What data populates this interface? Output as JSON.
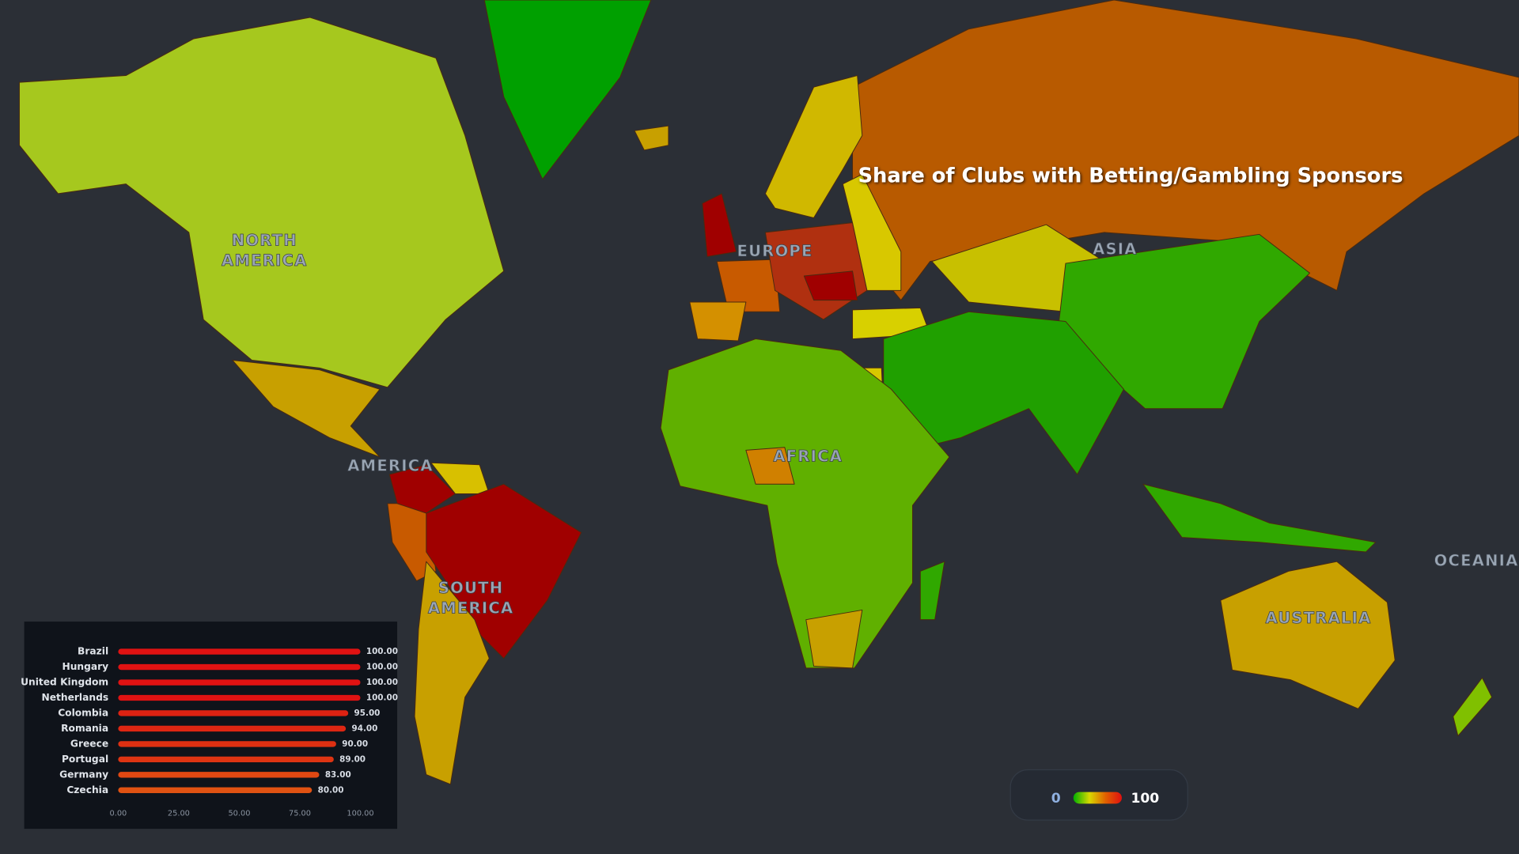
{
  "title": "Share of Clubs with Betting/Gambling Sponsors",
  "continent_labels": [
    {
      "lines": [
        "NORTH",
        "AMERICA"
      ]
    },
    {
      "lines": [
        "AMERICA"
      ]
    },
    {
      "lines": [
        "SOUTH",
        "AMERICA"
      ]
    },
    {
      "lines": [
        "EUROPE"
      ]
    },
    {
      "lines": [
        "ASIA"
      ]
    },
    {
      "lines": [
        "AFRICA"
      ]
    },
    {
      "lines": [
        "AUSTRALIA"
      ]
    },
    {
      "lines": [
        "OCEANIA"
      ]
    }
  ],
  "legend": {
    "min": 0,
    "max": 100,
    "colors": [
      "#00b000",
      "#d8d800",
      "#e06000",
      "#e01010"
    ]
  },
  "chart_data": {
    "type": "bar",
    "orientation": "horizontal",
    "categories": [
      "Brazil",
      "Hungary",
      "United Kingdom",
      "Netherlands",
      "Colombia",
      "Romania",
      "Greece",
      "Portugal",
      "Germany",
      "Czechia"
    ],
    "values": [
      100,
      100,
      100,
      100,
      95,
      94,
      90,
      89,
      83,
      80
    ],
    "value_labels": [
      "100.00",
      "100.00",
      "100.00",
      "100.00",
      "95.00",
      "94.00",
      "90.00",
      "89.00",
      "83.00",
      "80.00"
    ],
    "colors": [
      "#e01212",
      "#e01212",
      "#e01212",
      "#e01212",
      "#dd2212",
      "#dd2612",
      "#de3012",
      "#de3412",
      "#e04812",
      "#e05212"
    ],
    "xlim": [
      0,
      100
    ],
    "xticks": [
      {
        "value": 0,
        "label": "0.00"
      },
      {
        "value": 25,
        "label": "25.00"
      },
      {
        "value": 50,
        "label": "50.00"
      },
      {
        "value": 75,
        "label": "75.00"
      },
      {
        "value": 100,
        "label": "100.00"
      }
    ]
  }
}
